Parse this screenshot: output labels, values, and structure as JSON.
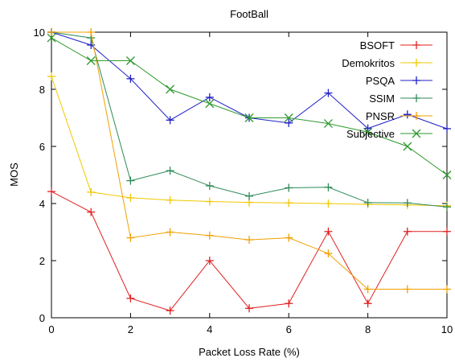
{
  "chart_data": {
    "type": "line",
    "title": "FootBall",
    "xlabel": "Packet Loss Rate (%)",
    "ylabel": "MOS",
    "xlim": [
      0,
      10
    ],
    "ylim": [
      0,
      10
    ],
    "xticks": [
      0,
      2,
      4,
      6,
      8,
      10
    ],
    "yticks": [
      0,
      2,
      4,
      6,
      8,
      10
    ],
    "x": [
      0,
      1,
      2,
      3,
      4,
      5,
      6,
      7,
      8,
      9,
      10
    ],
    "grid": false,
    "legend_position": "top-right",
    "series": [
      {
        "name": "BSOFT",
        "color": "#e02020",
        "marker": "plus",
        "values": [
          4.42,
          3.7,
          0.68,
          0.25,
          2.0,
          0.33,
          0.5,
          3.02,
          0.5,
          3.02,
          3.02
        ]
      },
      {
        "name": "Demokritos",
        "color": "#f0c800",
        "marker": "plus",
        "values": [
          8.45,
          4.4,
          4.2,
          4.12,
          4.07,
          4.04,
          4.02,
          4.0,
          3.97,
          3.95,
          3.92
        ]
      },
      {
        "name": "PSQA",
        "color": "#2020c8",
        "marker": "plus",
        "values": [
          10.0,
          9.55,
          8.37,
          6.92,
          7.72,
          7.0,
          6.82,
          7.87,
          6.63,
          7.12,
          6.62
        ]
      },
      {
        "name": "SSIM",
        "color": "#2e8b57",
        "marker": "plus",
        "values": [
          10.0,
          9.8,
          4.8,
          5.15,
          4.62,
          4.26,
          4.55,
          4.57,
          4.03,
          4.02,
          3.88
        ]
      },
      {
        "name": "PNSR",
        "color": "#f0a000",
        "marker": "plus",
        "values": [
          10.0,
          10.0,
          2.8,
          3.0,
          2.88,
          2.73,
          2.8,
          2.25,
          1.0,
          1.0,
          1.0
        ]
      },
      {
        "name": "Subjective",
        "color": "#2e9a2e",
        "marker": "x",
        "values": [
          9.8,
          9.0,
          9.0,
          8.0,
          7.5,
          7.0,
          7.0,
          6.8,
          6.5,
          6.0,
          5.0
        ]
      }
    ]
  }
}
